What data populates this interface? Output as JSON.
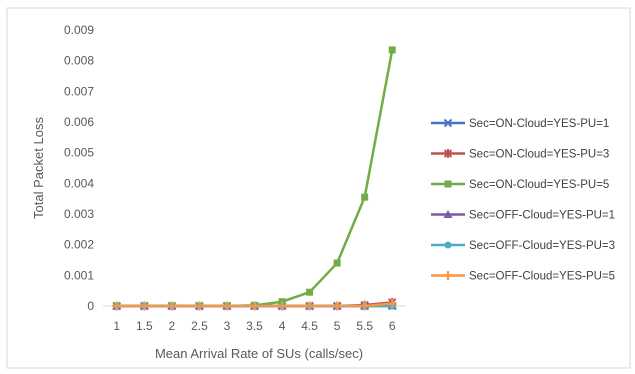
{
  "chart_data": {
    "type": "line",
    "xlabel": "Mean Arrival Rate of SUs (calls/sec)",
    "ylabel": "Total Packet Loss",
    "categories": [
      "1",
      "1.5",
      "2",
      "2.5",
      "3",
      "3.5",
      "4",
      "4.5",
      "5",
      "5.5",
      "6"
    ],
    "y_ticks": [
      "0",
      "0.001",
      "0.002",
      "0.003",
      "0.004",
      "0.005",
      "0.006",
      "0.007",
      "0.008",
      "0.009"
    ],
    "ylim": [
      0,
      0.009
    ],
    "grid": false,
    "legend_position": "right",
    "series": [
      {
        "name": "Sec=ON-Cloud=YES-PU=1",
        "color": "#4472C4",
        "marker": "x",
        "values": [
          0,
          0,
          0,
          0,
          0,
          0,
          0,
          0,
          0,
          0,
          0
        ]
      },
      {
        "name": "Sec=ON-Cloud=YES-PU=3",
        "color": "#C0504D",
        "marker": "star",
        "values": [
          0,
          0,
          0,
          0,
          0,
          0,
          0,
          0,
          0,
          3e-05,
          0.00012
        ]
      },
      {
        "name": "Sec=ON-Cloud=YES-PU=5",
        "color": "#70AD47",
        "marker": "square",
        "values": [
          0,
          0,
          0,
          0,
          0,
          2e-05,
          0.00014,
          0.00045,
          0.0014,
          0.00355,
          0.00835
        ]
      },
      {
        "name": "Sec=OFF-Cloud=YES-PU=1",
        "color": "#7B5AA6",
        "marker": "triangle",
        "values": [
          0,
          0,
          0,
          0,
          0,
          0,
          0,
          0,
          0,
          0,
          2e-05
        ]
      },
      {
        "name": "Sec=OFF-Cloud=YES-PU=3",
        "color": "#4BACC6",
        "marker": "circle",
        "values": [
          0,
          0,
          0,
          0,
          0,
          0,
          0,
          0,
          0,
          0,
          0
        ]
      },
      {
        "name": "Sec=OFF-Cloud=YES-PU=5",
        "color": "#F79646",
        "marker": "plus",
        "values": [
          0,
          0,
          0,
          0,
          0,
          0,
          0,
          0,
          0,
          0,
          8e-05
        ]
      }
    ]
  }
}
